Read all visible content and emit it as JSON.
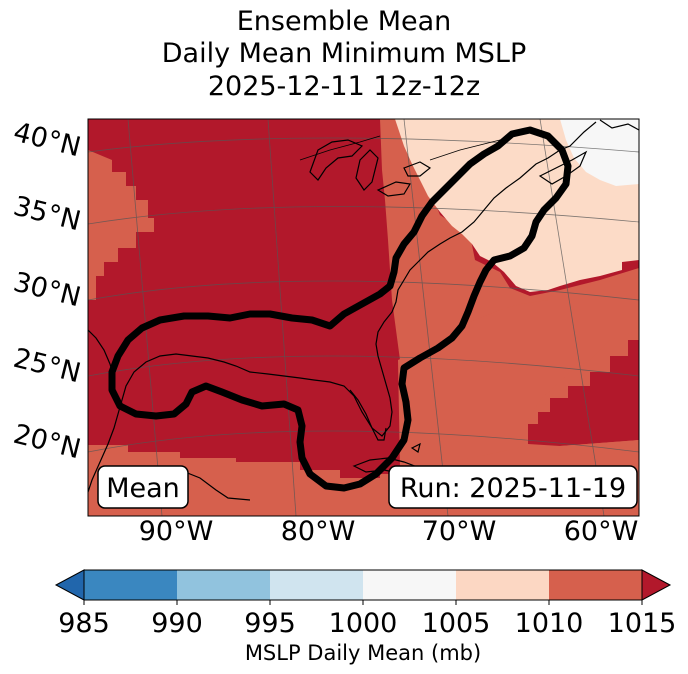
{
  "title": {
    "line1": "Ensemble Mean",
    "line2": "Daily Mean Minimum MSLP",
    "line3": "2025-12-11 12z-12z"
  },
  "map": {
    "lat_labels": [
      "40°N",
      "35°N",
      "30°N",
      "25°N",
      "20°N"
    ],
    "lon_labels": [
      "90°W",
      "80°W",
      "70°W",
      "60°W"
    ],
    "mean_box_label": "Mean",
    "run_box_label": "Run: 2025-11-19"
  },
  "colorbar": {
    "ticks": [
      "985",
      "990",
      "995",
      "1000",
      "1005",
      "1010",
      "1015"
    ],
    "label": "MSLP Daily Mean (mb)",
    "colors": [
      "#3a87c0",
      "#91c3de",
      "#d0e4ef",
      "#f7f7f7",
      "#fcd7c3",
      "#d6604d",
      "#b2182b"
    ],
    "under_color": "#2166ac",
    "over_color": "#b2182b"
  },
  "palette": {
    "band_1015": "#b2182b",
    "band_1010": "#d6604d",
    "band_1005": "#fcdbc7",
    "band_1000": "#f7f7f7",
    "outline": "#000000"
  }
}
